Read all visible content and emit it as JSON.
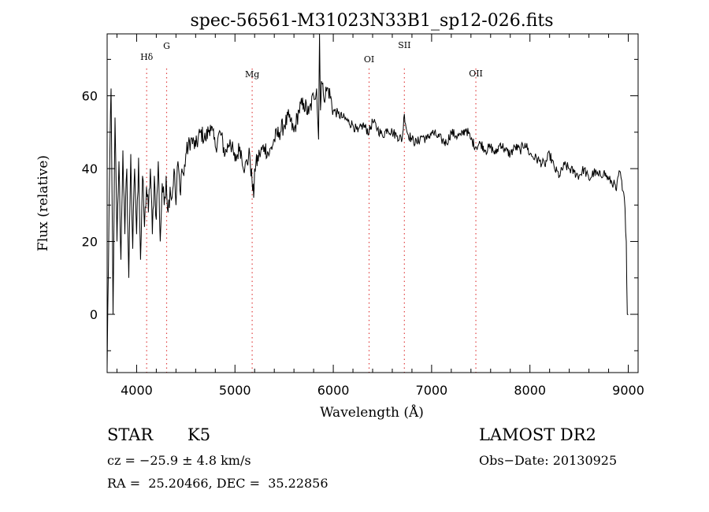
{
  "chart_data": {
    "type": "line",
    "title": "spec-56561-M31023N33B1_sp12-026.fits",
    "xlabel": "Wavelength (Å)",
    "ylabel": "Flux (relative)",
    "xlim": [
      3700,
      9100
    ],
    "ylim": [
      -16,
      77
    ],
    "xticks": [
      4000,
      5000,
      6000,
      7000,
      8000,
      9000
    ],
    "yticks": [
      0,
      20,
      40,
      60
    ],
    "grid": false,
    "line_color": "#000000",
    "marker_color": "#e04040",
    "lines": [
      {
        "label": "Hδ",
        "x": 4102
      },
      {
        "label": "G",
        "x": 4305
      },
      {
        "label": "Mg",
        "x": 5175
      },
      {
        "label": "OI",
        "x": 6364
      },
      {
        "label": "SII",
        "x": 6723
      },
      {
        "label": "OII",
        "x": 7450
      }
    ],
    "series": [
      {
        "x": [
          3700,
          3720,
          3740,
          3760,
          3780,
          3800,
          3820,
          3840,
          3860,
          3880,
          3900,
          3920,
          3940,
          3960,
          3980,
          4000,
          4020,
          4040,
          4060,
          4080,
          4100,
          4120,
          4140,
          4160,
          4180,
          4200,
          4220,
          4240,
          4260,
          4280,
          4300,
          4320,
          4340,
          4360,
          4380,
          4400,
          4420,
          4440,
          4460,
          4480,
          4500,
          4550,
          4600,
          4650,
          4700,
          4750,
          4800,
          4850,
          4900,
          4950,
          5000,
          5050,
          5100,
          5150,
          5175,
          5190,
          5200,
          5250,
          5300,
          5350,
          5400,
          5450,
          5500,
          5550,
          5600,
          5650,
          5700,
          5750,
          5800,
          5830,
          5850,
          5860,
          5870,
          5880,
          5900,
          5950,
          6000,
          6050,
          6100,
          6150,
          6200,
          6250,
          6300,
          6364,
          6400,
          6450,
          6500,
          6550,
          6600,
          6650,
          6700,
          6723,
          6750,
          6800,
          6850,
          6900,
          6950,
          7000,
          7050,
          7100,
          7150,
          7200,
          7250,
          7300,
          7350,
          7400,
          7450,
          7500,
          7550,
          7600,
          7650,
          7700,
          7750,
          7800,
          7850,
          7900,
          7950,
          8000,
          8050,
          8100,
          8150,
          8200,
          8250,
          8300,
          8350,
          8400,
          8450,
          8500,
          8550,
          8600,
          8650,
          8700,
          8750,
          8800,
          8850,
          8880,
          8900,
          8920,
          8940,
          8960,
          8980,
          8990,
          9000
        ],
        "y": [
          -15,
          30,
          62,
          0,
          54,
          20,
          42,
          15,
          45,
          22,
          40,
          10,
          44,
          18,
          40,
          22,
          43,
          15,
          38,
          24,
          35,
          28,
          40,
          22,
          38,
          26,
          42,
          20,
          36,
          30,
          38,
          28,
          35,
          32,
          40,
          30,
          42,
          34,
          40,
          38,
          44,
          48,
          46,
          50,
          48,
          52,
          46,
          50,
          44,
          48,
          42,
          46,
          40,
          44,
          36,
          32,
          40,
          44,
          46,
          44,
          48,
          50,
          52,
          54,
          50,
          56,
          58,
          55,
          60,
          62,
          48,
          80,
          56,
          64,
          60,
          62,
          56,
          55,
          54,
          53,
          52,
          50,
          52,
          50,
          53,
          51,
          49,
          51,
          50,
          49,
          48,
          55,
          50,
          48,
          47,
          49,
          48,
          50,
          49,
          48,
          47,
          50,
          49,
          49,
          51,
          48,
          46,
          47,
          45,
          46,
          44,
          47,
          45,
          44,
          46,
          45,
          47,
          44,
          43,
          42,
          41,
          44,
          40,
          38,
          41,
          40,
          39,
          38,
          40,
          37,
          39,
          38,
          39,
          37,
          36,
          34,
          38,
          39,
          34,
          32,
          20,
          0,
          0
        ]
      }
    ]
  },
  "info": {
    "object_type": "STAR",
    "subclass": "K5",
    "survey": "LAMOST DR2",
    "cz": "cz = −25.9 ± 4.8 km/s",
    "obs_date": "Obs−Date: 20130925",
    "radec": "RA =  25.20466, DEC =  35.22856"
  }
}
